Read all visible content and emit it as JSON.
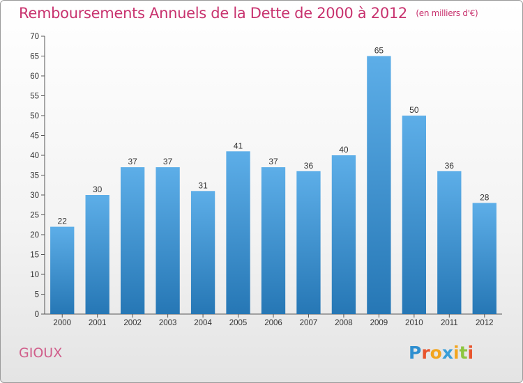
{
  "chart_data": {
    "type": "bar",
    "title": "Remboursements Annuels de la Dette de 2000 à 2012",
    "unit_note": "(en milliers d'€)",
    "categories": [
      "2000",
      "2001",
      "2002",
      "2003",
      "2004",
      "2005",
      "2006",
      "2007",
      "2008",
      "2009",
      "2010",
      "2011",
      "2012"
    ],
    "values": [
      22,
      30,
      37,
      37,
      31,
      41,
      37,
      36,
      40,
      65,
      50,
      36,
      28
    ],
    "ylim": [
      0,
      70
    ],
    "yticks": [
      0,
      5,
      10,
      15,
      20,
      25,
      30,
      35,
      40,
      45,
      50,
      55,
      60,
      65,
      70
    ],
    "grid": false,
    "bar_color_top": "#5daee8",
    "bar_color_bottom": "#2677b5"
  },
  "footer": {
    "commune": "GIOUX",
    "brand_letters": [
      "P",
      "r",
      "o",
      "x",
      "i",
      "t",
      "i"
    ],
    "brand_colors": [
      "#2f8fd0",
      "#e8542c",
      "#f2a51f",
      "#3a9fd8",
      "#f2a51f",
      "#8dc63f",
      "#e8542c"
    ]
  },
  "colors": {
    "title": "#c8326e",
    "axis": "#555555"
  }
}
